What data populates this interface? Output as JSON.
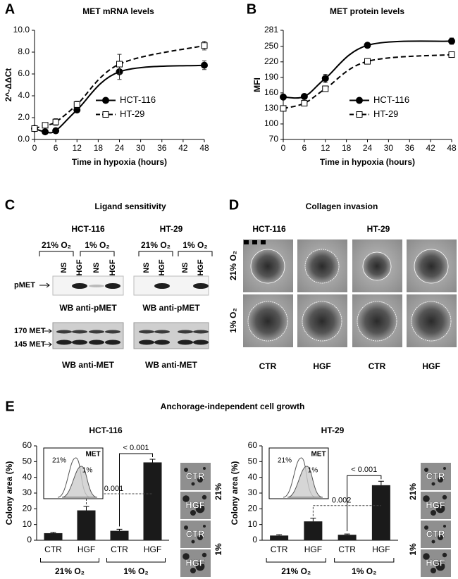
{
  "figure": {
    "panel_labels": [
      "A",
      "B",
      "C",
      "D",
      "E"
    ],
    "panel_c": {
      "title": "Ligand sensitivity",
      "cell_lines": [
        "HCT-116",
        "HT-29"
      ],
      "oxygen": [
        "21% O₂",
        "1% O₂",
        "21% O₂",
        "1% O₂"
      ],
      "lanes": [
        "NS",
        "HGF",
        "NS",
        "HGF",
        "NS",
        "HGF",
        "NS",
        "HGF"
      ],
      "pmet_label": "pMET",
      "pmet_blots": [
        "WB anti-pMET",
        "WB anti-pMET"
      ],
      "met_bands": [
        "170 MET",
        "145 MET"
      ],
      "met_blots": [
        "WB anti-MET",
        "WB anti-MET"
      ]
    },
    "panel_d": {
      "title": "Collagen invasion",
      "cell_lines": [
        "HCT-116",
        "HT-29"
      ],
      "rows": [
        "21% O₂",
        "1% O₂"
      ],
      "columns": [
        "CTR",
        "HGF",
        "CTR",
        "HGF"
      ]
    },
    "panel_e": {
      "title": "Anchorage-independent cell growth"
    }
  },
  "chart_data": [
    {
      "type": "line",
      "title": "MET mRNA levels",
      "xlabel": "Time in hypoxia (hours)",
      "ylabel": "2^-ΔΔCt",
      "x": [
        0,
        3,
        6,
        12,
        24,
        48
      ],
      "series": [
        {
          "name": "HCT-116",
          "color": "#000000",
          "marker": "circle",
          "line": "solid",
          "values": [
            1.0,
            0.7,
            0.8,
            2.7,
            6.2,
            6.8
          ],
          "errors": [
            0.1,
            0.1,
            0.1,
            0.2,
            0.7,
            0.4
          ]
        },
        {
          "name": "HT-29",
          "color": "#000000",
          "marker": "square",
          "line": "dashed",
          "values": [
            1.0,
            1.3,
            1.6,
            3.2,
            6.9,
            8.6
          ],
          "errors": [
            0.1,
            0.1,
            0.3,
            0.3,
            0.9,
            0.4
          ]
        }
      ],
      "xlim": [
        0,
        48
      ],
      "xticks": [
        0,
        6,
        12,
        18,
        24,
        30,
        36,
        42,
        48
      ],
      "ylim": [
        0,
        10
      ],
      "yticks": [
        {
          "value": 0,
          "label": "0.0"
        },
        {
          "value": 2,
          "label": "2.0"
        },
        {
          "value": 4,
          "label": "4.0"
        },
        {
          "value": 6,
          "label": "6.0"
        },
        {
          "value": 8,
          "label": "8.0"
        },
        {
          "value": 10,
          "label": "10.0"
        }
      ],
      "legend": "center right"
    },
    {
      "type": "line",
      "title": "MET protein levels",
      "xlabel": "Time in hypoxia (hours)",
      "ylabel": "MFI",
      "x": [
        0,
        6,
        12,
        24,
        48
      ],
      "series": [
        {
          "name": "HCT-116",
          "color": "#000000",
          "marker": "circle",
          "line": "solid",
          "values": [
            152,
            153,
            188,
            252,
            260
          ],
          "errors": [
            4,
            5,
            8,
            5,
            6
          ]
        },
        {
          "name": "HT-29",
          "color": "#000000",
          "marker": "square",
          "line": "dashed",
          "values": [
            130,
            140,
            168,
            221,
            234
          ],
          "errors": [
            3,
            3,
            3,
            3,
            3
          ]
        }
      ],
      "xlim": [
        0,
        48
      ],
      "xticks": [
        0,
        6,
        12,
        18,
        24,
        30,
        36,
        42,
        48
      ],
      "ylim": [
        70,
        281
      ],
      "yticks": [
        70,
        100,
        130,
        160,
        190,
        220,
        250,
        281
      ],
      "legend": "center right"
    },
    {
      "type": "bar",
      "title": "HCT-116",
      "ylabel": "Colony area (%)",
      "color": "#1a1a1a",
      "categories": [
        "CTR",
        "HGF",
        "CTR",
        "HGF"
      ],
      "groups": [
        "21% O₂",
        "1% O₂"
      ],
      "values": [
        4.5,
        19,
        6,
        49.5
      ],
      "errors": [
        0.5,
        2.5,
        1,
        2
      ],
      "ylim": [
        0,
        60
      ],
      "yticks": [
        0,
        10,
        20,
        30,
        40,
        50,
        60
      ],
      "comparisons": [
        "< 0.001",
        "0.001"
      ],
      "inset": {
        "label": "MET",
        "series": [
          "21%",
          "1%"
        ]
      },
      "images": {
        "labels": [
          "CTR",
          "HGF",
          "CTR",
          "HGF"
        ],
        "groups": [
          "21%",
          "1%"
        ]
      }
    },
    {
      "type": "bar",
      "title": "HT-29",
      "ylabel": "Colony area (%)",
      "color": "#1a1a1a",
      "categories": [
        "CTR",
        "HGF",
        "CTR",
        "HGF"
      ],
      "groups": [
        "21% O₂",
        "1% O₂"
      ],
      "values": [
        3,
        12,
        3.5,
        35
      ],
      "errors": [
        0.5,
        2,
        0.5,
        2.5
      ],
      "ylim": [
        0,
        60
      ],
      "yticks": [
        0,
        10,
        20,
        30,
        40,
        50,
        60
      ],
      "comparisons": [
        "< 0.001",
        "0.002"
      ],
      "inset": {
        "label": "MET",
        "series": [
          "21%",
          "1%"
        ]
      },
      "images": {
        "labels": [
          "CTR",
          "HGF",
          "CTR",
          "HGF"
        ],
        "groups": [
          "21%",
          "1%"
        ]
      }
    }
  ]
}
